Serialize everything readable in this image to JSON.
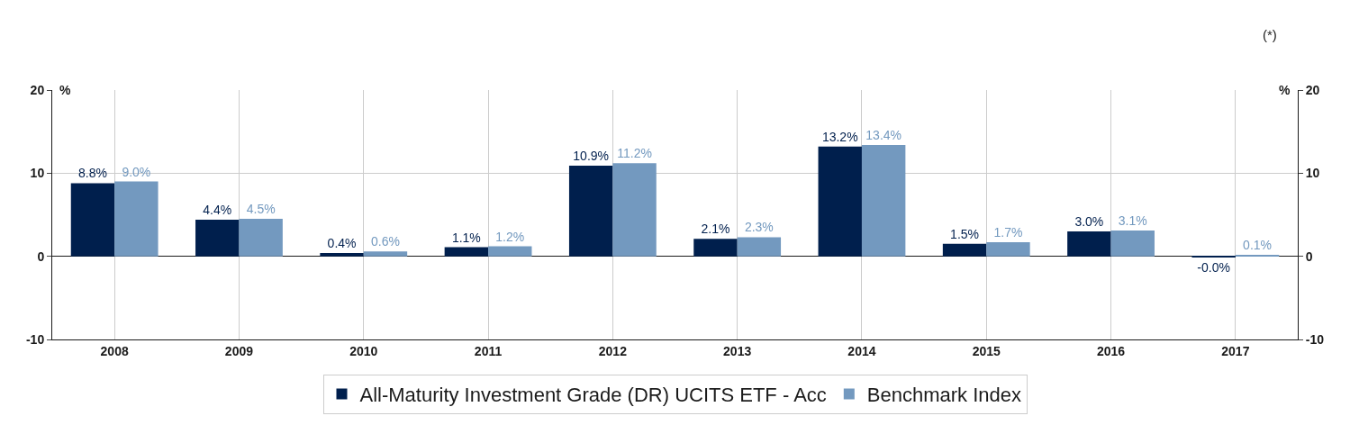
{
  "chart_data": {
    "type": "bar",
    "categories": [
      "2008",
      "2009",
      "2010",
      "2011",
      "2012",
      "2013",
      "2014",
      "2015",
      "2016",
      "2017"
    ],
    "series": [
      {
        "name": "All-Maturity Investment Grade (DR) UCITS ETF - Acc",
        "color": "#001f4d",
        "values": [
          8.8,
          4.4,
          0.4,
          1.1,
          10.9,
          2.1,
          13.2,
          1.5,
          3.0,
          -0.04
        ],
        "value_labels": [
          "8.8%",
          "4.4%",
          "0.4%",
          "1.1%",
          "10.9%",
          "2.1%",
          "13.2%",
          "1.5%",
          "3.0%",
          "-0.0%"
        ]
      },
      {
        "name": "Benchmark Index",
        "color": "#7399bf",
        "values": [
          9.0,
          4.5,
          0.6,
          1.2,
          11.2,
          2.3,
          13.4,
          1.7,
          3.1,
          0.1
        ],
        "value_labels": [
          "9.0%",
          "4.5%",
          "0.6%",
          "1.2%",
          "11.2%",
          "2.3%",
          "13.4%",
          "1.7%",
          "3.1%",
          "0.1%"
        ]
      }
    ],
    "ylabel": "%",
    "y2label": "%",
    "ylim": [
      -10,
      20
    ],
    "yticks": [
      -10,
      0,
      10,
      20
    ],
    "y2lim": [
      -10,
      20
    ],
    "y2ticks": [
      -10,
      0,
      10,
      20
    ],
    "annotations": [
      "(*)"
    ],
    "grid": true,
    "legend": "bottom"
  }
}
